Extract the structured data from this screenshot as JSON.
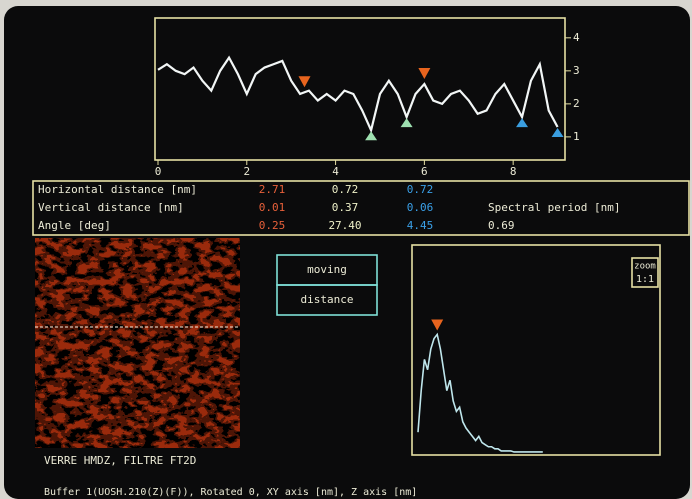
{
  "profile": {
    "x": [
      0,
      0.2,
      0.4,
      0.6,
      0.8,
      1.0,
      1.2,
      1.4,
      1.6,
      1.8,
      2.0,
      2.2,
      2.4,
      2.6,
      2.8,
      3.0,
      3.2,
      3.4,
      3.6,
      3.8,
      4.0,
      4.2,
      4.4,
      4.6,
      4.8,
      5.0,
      5.2,
      5.4,
      5.6,
      5.8,
      6.0,
      6.2,
      6.4,
      6.6,
      6.8,
      7.0,
      7.2,
      7.4,
      7.6,
      7.8,
      8.0,
      8.2,
      8.4,
      8.6,
      8.8,
      9.0
    ],
    "y": [
      3.03,
      3.2,
      3.0,
      2.9,
      3.1,
      2.7,
      2.4,
      3.0,
      3.4,
      2.9,
      2.3,
      2.9,
      3.1,
      3.2,
      3.3,
      2.7,
      2.3,
      2.4,
      2.1,
      2.3,
      2.1,
      2.4,
      2.3,
      1.8,
      1.2,
      2.3,
      2.7,
      2.3,
      1.6,
      2.3,
      2.6,
      2.1,
      2.0,
      2.3,
      2.4,
      2.1,
      1.7,
      1.8,
      2.3,
      2.6,
      2.1,
      1.6,
      2.7,
      3.2,
      1.8,
      1.3
    ],
    "xlim": [
      0,
      9.1
    ],
    "ylim": [
      0.3,
      4.6
    ],
    "xticks": [
      0,
      2,
      4,
      6,
      8
    ],
    "yticks": [
      1,
      2,
      3,
      4
    ],
    "markers": [
      {
        "x": 3.3,
        "y": 2.35,
        "color": "#e8641e",
        "kind": "top"
      },
      {
        "x": 6.0,
        "y": 2.6,
        "color": "#e8641e",
        "kind": "top"
      },
      {
        "x": 4.8,
        "y": 1.2,
        "color": "#9ee0b0",
        "kind": "bottom"
      },
      {
        "x": 5.6,
        "y": 1.6,
        "color": "#9ee0b0",
        "kind": "bottom"
      },
      {
        "x": 8.2,
        "y": 1.6,
        "color": "#3a9ee0",
        "kind": "bottom"
      },
      {
        "x": 9.0,
        "y": 1.3,
        "color": "#3a9ee0",
        "kind": "bottom"
      }
    ]
  },
  "measurements": {
    "rows": [
      {
        "label": "Horizontal distance [nm]",
        "values": [
          "2.71",
          "0.72",
          "0.72"
        ]
      },
      {
        "label": "Vertical distance [nm]",
        "values": [
          "0.01",
          "0.37",
          "0.06"
        ]
      },
      {
        "label": "Angle [deg]",
        "values": [
          "0.25",
          "27.40",
          "4.45"
        ]
      }
    ],
    "colors": [
      "#e8603a",
      "#eef0c8",
      "#3aa0e8"
    ],
    "spectral_label": "Spectral period [nm]",
    "spectral_value": "0.69"
  },
  "image_caption": "VERRE HMDZ, FILTRE FT2D",
  "buttons": [
    "moving",
    "distance"
  ],
  "spectrum": {
    "values": [
      10,
      30,
      45,
      40,
      50,
      55,
      57,
      50,
      40,
      30,
      35,
      25,
      20,
      22,
      15,
      12,
      10,
      8,
      6,
      8,
      5,
      4,
      3,
      3,
      2,
      2,
      1,
      1,
      1,
      1,
      0.5,
      0.5,
      0.5,
      0.5,
      0.5,
      0.5,
      0.5,
      0.5,
      0.5,
      0.5
    ],
    "ylim": [
      0,
      100
    ],
    "peak_index": 6,
    "zoom_label": "zoom",
    "zoom_value": "1:1"
  },
  "footer": "Buffer 1(UOSH.210(Z)(F)), Rotated 0, XY axis [nm], Z axis [nm]"
}
